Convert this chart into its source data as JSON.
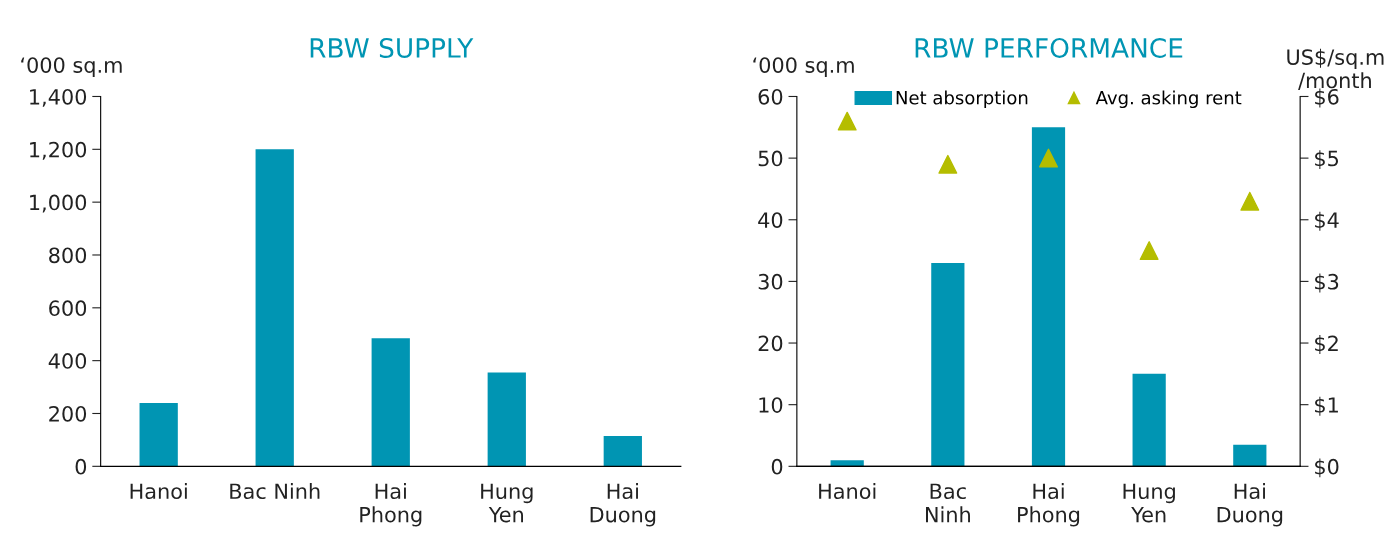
{
  "chart_data": [
    {
      "type": "bar",
      "title": "RBW SUPPLY",
      "ylabel": "‘000 sq.m",
      "categories": [
        "Hanoi",
        "Bac Ninh",
        "Hai\nPhong",
        "Hung\nYen",
        "Hai\nDuong"
      ],
      "series": [
        {
          "color": "#0095b3",
          "values": [
            240,
            1200,
            485,
            355,
            115
          ]
        }
      ],
      "ylim": [
        0,
        1400
      ],
      "yticks": [
        0,
        {
          "value": 200,
          "label": "200"
        },
        {
          "value": 400,
          "label": "400"
        },
        {
          "value": 600,
          "label": "600"
        },
        {
          "value": 800,
          "label": "800"
        },
        {
          "value": 1000,
          "label": "1,000"
        },
        {
          "value": 1200,
          "label": "1,200"
        },
        {
          "value": 1400,
          "label": "1,400"
        }
      ],
      "grid": false,
      "legend": false
    },
    {
      "type": "bar",
      "title": "RBW PERFORMANCE",
      "ylabel": "‘000 sq.m",
      "y2label": "US$/sq.m\n/month",
      "categories": [
        "Hanoi",
        "Bac\nNinh",
        "Hai\nPhong",
        "Hung\nYen",
        "Hai\nDuong"
      ],
      "series": [
        {
          "name": "Net absorption",
          "type": "bar",
          "color": "#0095b3",
          "values": [
            1,
            33,
            55,
            15,
            3.5
          ]
        },
        {
          "name": "Avg. asking rent",
          "type": "scatter",
          "axis": "y2",
          "marker": "triangle",
          "color": "#b5bd00",
          "values": [
            5.6,
            4.9,
            5.0,
            3.5,
            4.3
          ]
        }
      ],
      "ylim": [
        0,
        60
      ],
      "yticks": [
        0,
        10,
        20,
        30,
        40,
        50,
        60
      ],
      "y2lim": [
        0,
        6
      ],
      "y2ticks": [
        {
          "value": 0,
          "label": "$0"
        },
        {
          "value": 1,
          "label": "$1"
        },
        {
          "value": 2,
          "label": "$2"
        },
        {
          "value": 3,
          "label": "$3"
        },
        {
          "value": 4,
          "label": "$4"
        },
        {
          "value": 5,
          "label": "$5"
        },
        {
          "value": 6,
          "label": "$6"
        }
      ],
      "grid": false,
      "legend": "top"
    }
  ]
}
